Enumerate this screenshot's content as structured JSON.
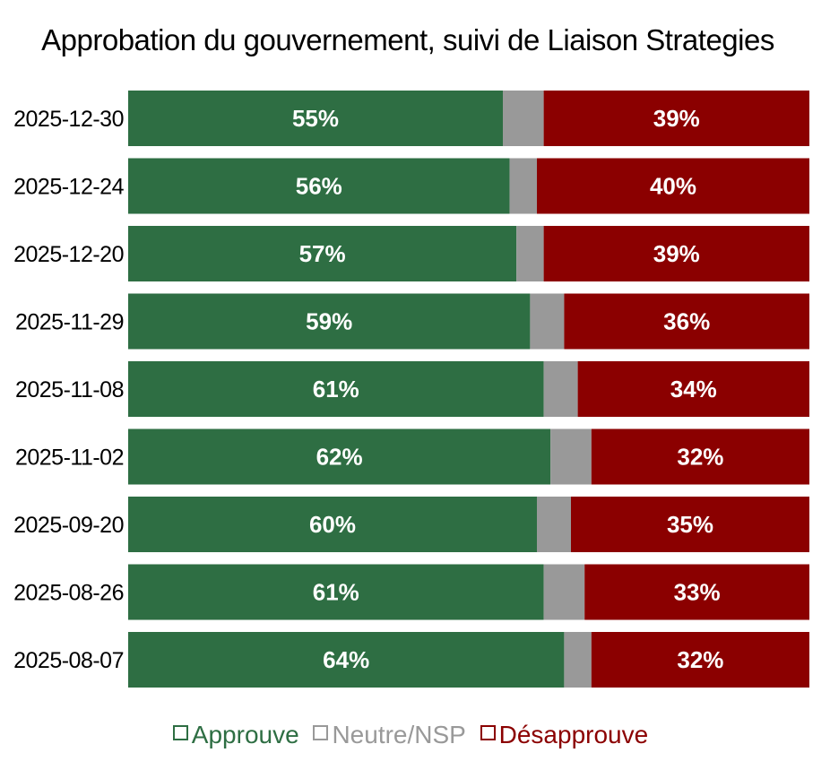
{
  "chart_data": {
    "type": "bar",
    "orientation": "horizontal",
    "stacked": true,
    "title": "Approbation du gouvernement, suivi de Liaison Strategies",
    "categories": [
      "2025-12-30",
      "2025-12-24",
      "2025-12-20",
      "2025-11-29",
      "2025-11-08",
      "2025-11-02",
      "2025-09-20",
      "2025-08-26",
      "2025-08-07"
    ],
    "series": [
      {
        "name": "Approuve",
        "color": "#2e6e43",
        "values": [
          55,
          56,
          57,
          59,
          61,
          62,
          60,
          61,
          64
        ]
      },
      {
        "name": "Neutre/NSP",
        "color": "#999999",
        "values": [
          6,
          4,
          4,
          5,
          5,
          6,
          5,
          6,
          4
        ]
      },
      {
        "name": "Désapprouve",
        "color": "#8b0000",
        "values": [
          39,
          40,
          39,
          36,
          34,
          32,
          35,
          33,
          32
        ]
      }
    ],
    "data_labels": {
      "Approuve": [
        "55%",
        "56%",
        "57%",
        "59%",
        "61%",
        "62%",
        "60%",
        "61%",
        "64%"
      ],
      "Désapprouve": [
        "39%",
        "40%",
        "39%",
        "36%",
        "34%",
        "32%",
        "35%",
        "33%",
        "32%"
      ]
    },
    "xlim": [
      0,
      100
    ],
    "xlabel": "",
    "ylabel": "",
    "grid": false,
    "legend": {
      "position": "bottom-center",
      "entries": [
        "Approuve",
        "Neutre/NSP",
        "Désapprouve"
      ]
    }
  }
}
